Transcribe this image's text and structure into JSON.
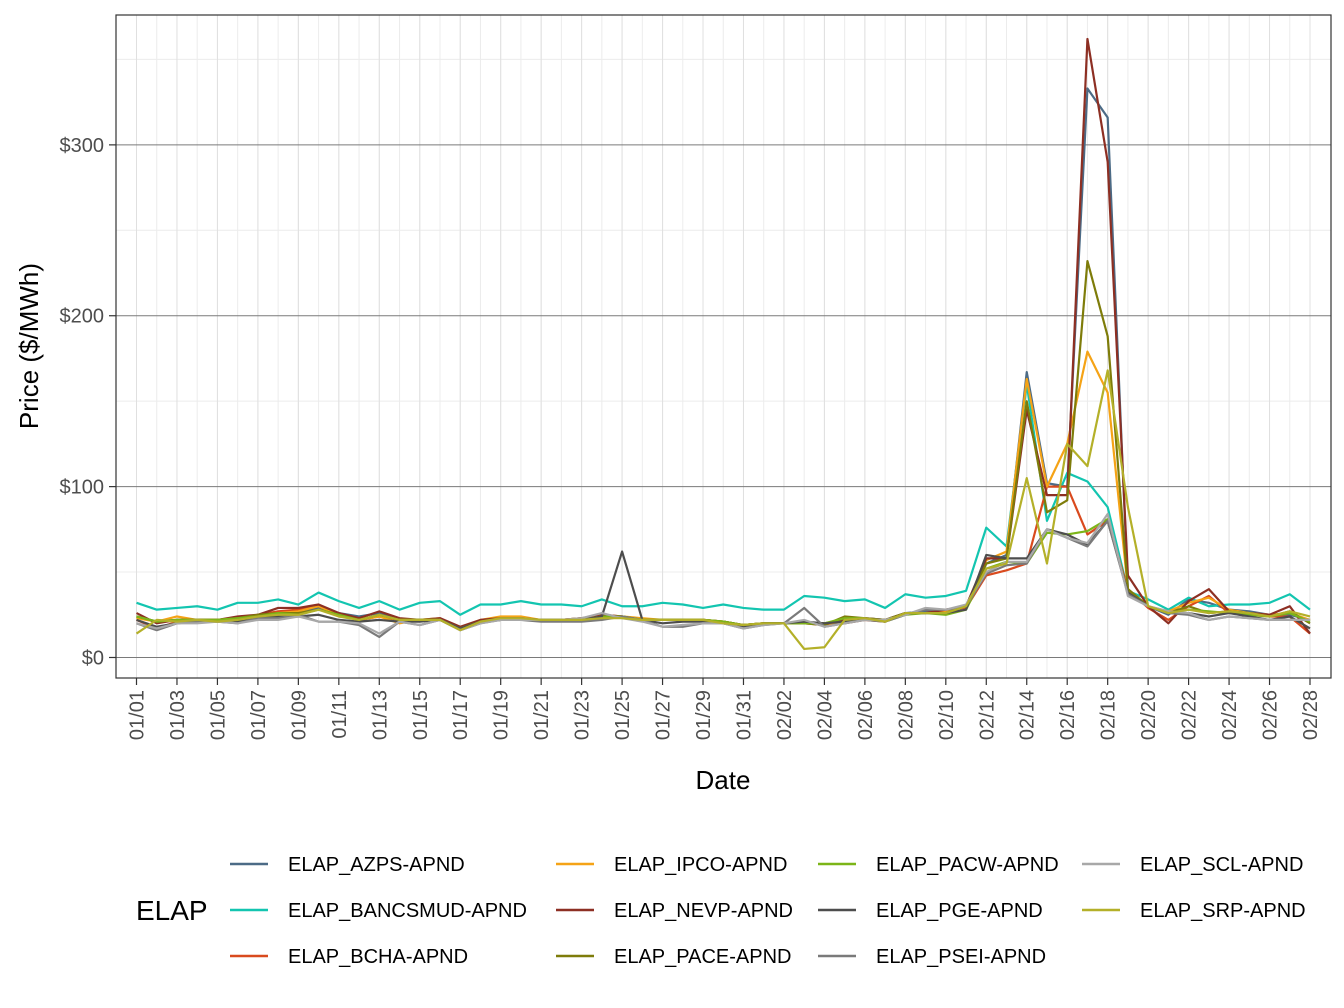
{
  "chart_data": {
    "type": "line",
    "xlabel": "Date",
    "ylabel": "Price ($/MWh)",
    "legend_title": "ELAP",
    "legend_position": "bottom",
    "grid": true,
    "ylim": [
      -12,
      376
    ],
    "y_ticks": [
      0,
      100,
      200,
      300
    ],
    "y_tick_labels": [
      "$0",
      "$100",
      "$200",
      "$300"
    ],
    "y_minor_ticks": [
      50,
      150,
      250,
      350
    ],
    "x": [
      "01/01",
      "01/02",
      "01/03",
      "01/04",
      "01/05",
      "01/06",
      "01/07",
      "01/08",
      "01/09",
      "01/10",
      "01/11",
      "01/12",
      "01/13",
      "01/14",
      "01/15",
      "01/16",
      "01/17",
      "01/18",
      "01/19",
      "01/20",
      "01/21",
      "01/22",
      "01/23",
      "01/24",
      "01/25",
      "01/26",
      "01/27",
      "01/28",
      "01/29",
      "01/30",
      "01/31",
      "02/01",
      "02/02",
      "02/03",
      "02/04",
      "02/05",
      "02/06",
      "02/07",
      "02/08",
      "02/09",
      "02/10",
      "02/11",
      "02/12",
      "02/13",
      "02/14",
      "02/15",
      "02/16",
      "02/17",
      "02/18",
      "02/19",
      "02/20",
      "02/21",
      "02/22",
      "02/23",
      "02/24",
      "02/25",
      "02/26",
      "02/27",
      "02/28"
    ],
    "x_tick_labels": [
      "01/01",
      "01/03",
      "01/05",
      "01/07",
      "01/09",
      "01/11",
      "01/13",
      "01/15",
      "01/17",
      "01/19",
      "01/21",
      "01/23",
      "01/25",
      "01/27",
      "01/29",
      "01/31",
      "02/02",
      "02/04",
      "02/06",
      "02/08",
      "02/10",
      "02/12",
      "02/14",
      "02/16",
      "02/18",
      "02/20",
      "02/22",
      "02/24",
      "02/26",
      "02/28"
    ],
    "series": [
      {
        "name": "ELAP_AZPS-APND",
        "color": "#4c6b86",
        "values": [
          24,
          21,
          22,
          22,
          22,
          23,
          24,
          26,
          27,
          29,
          26,
          24,
          26,
          22,
          22,
          22,
          17,
          21,
          23,
          23,
          22,
          22,
          23,
          24,
          24,
          22,
          22,
          22,
          22,
          21,
          19,
          20,
          20,
          20,
          20,
          21,
          23,
          22,
          26,
          27,
          28,
          30,
          55,
          60,
          167,
          102,
          100,
          333,
          316,
          40,
          30,
          25,
          34,
          32,
          28,
          27,
          25,
          25,
          22
        ]
      },
      {
        "name": "ELAP_BANCSMUD-APND",
        "color": "#13c5b0",
        "values": [
          32,
          28,
          29,
          30,
          28,
          32,
          32,
          34,
          31,
          38,
          33,
          29,
          33,
          28,
          32,
          33,
          25,
          31,
          31,
          33,
          31,
          31,
          30,
          34,
          30,
          30,
          32,
          31,
          29,
          31,
          29,
          28,
          28,
          36,
          35,
          33,
          34,
          29,
          37,
          35,
          36,
          39,
          76,
          65,
          160,
          80,
          108,
          103,
          88,
          39,
          34,
          28,
          35,
          30,
          31,
          31,
          32,
          37,
          28
        ]
      },
      {
        "name": "ELAP_BCHA-APND",
        "color": "#d94a1e",
        "values": [
          22,
          17,
          21,
          22,
          22,
          23,
          25,
          27,
          28,
          30,
          25,
          22,
          24,
          22,
          22,
          22,
          17,
          21,
          22,
          22,
          22,
          22,
          22,
          24,
          24,
          22,
          22,
          22,
          22,
          21,
          19,
          20,
          20,
          20,
          19,
          20,
          22,
          21,
          26,
          26,
          28,
          29,
          48,
          51,
          55,
          100,
          100,
          72,
          80,
          40,
          29,
          22,
          30,
          36,
          26,
          25,
          24,
          24,
          14
        ]
      },
      {
        "name": "ELAP_IPCO-APND",
        "color": "#f5a316",
        "values": [
          23,
          21,
          24,
          22,
          22,
          23,
          24,
          26,
          27,
          30,
          25,
          22,
          24,
          20,
          22,
          23,
          17,
          22,
          24,
          24,
          22,
          22,
          23,
          25,
          24,
          23,
          22,
          22,
          22,
          21,
          19,
          20,
          20,
          20,
          20,
          20,
          23,
          21,
          26,
          26,
          27,
          30,
          57,
          62,
          163,
          100,
          125,
          179,
          155,
          40,
          30,
          27,
          32,
          35,
          28,
          26,
          25,
          26,
          22
        ]
      },
      {
        "name": "ELAP_NEVP-APND",
        "color": "#8d2f23",
        "values": [
          26,
          20,
          22,
          22,
          22,
          24,
          25,
          29,
          29,
          31,
          26,
          23,
          27,
          23,
          22,
          23,
          18,
          22,
          23,
          23,
          22,
          22,
          23,
          25,
          24,
          22,
          22,
          22,
          21,
          21,
          19,
          20,
          20,
          20,
          20,
          22,
          23,
          22,
          26,
          26,
          28,
          30,
          58,
          58,
          145,
          95,
          95,
          362,
          290,
          48,
          30,
          20,
          33,
          40,
          27,
          26,
          25,
          30,
          14
        ]
      },
      {
        "name": "ELAP_PACE-APND",
        "color": "#7e7c0a",
        "values": [
          24,
          21,
          22,
          22,
          22,
          23,
          25,
          26,
          26,
          28,
          25,
          22,
          25,
          22,
          22,
          22,
          17,
          21,
          22,
          22,
          22,
          22,
          22,
          24,
          24,
          22,
          22,
          22,
          22,
          21,
          19,
          20,
          20,
          20,
          19,
          24,
          23,
          22,
          26,
          26,
          26,
          30,
          55,
          58,
          150,
          85,
          92,
          232,
          188,
          40,
          30,
          26,
          30,
          26,
          27,
          26,
          24,
          27,
          20
        ]
      },
      {
        "name": "ELAP_PACW-APND",
        "color": "#7cb518",
        "values": [
          24,
          21,
          22,
          22,
          22,
          23,
          24,
          26,
          25,
          28,
          25,
          22,
          25,
          22,
          22,
          22,
          17,
          21,
          22,
          22,
          22,
          22,
          22,
          24,
          24,
          22,
          22,
          22,
          22,
          21,
          19,
          20,
          20,
          20,
          20,
          23,
          23,
          21,
          25,
          26,
          25,
          28,
          52,
          56,
          55,
          73,
          72,
          74,
          81,
          38,
          30,
          26,
          28,
          27,
          26,
          25,
          24,
          26,
          21
        ]
      },
      {
        "name": "ELAP_PGE-APND",
        "color": "#4d4d4d",
        "values": [
          22,
          18,
          20,
          21,
          21,
          21,
          23,
          24,
          24,
          25,
          22,
          21,
          22,
          21,
          21,
          22,
          17,
          21,
          22,
          22,
          22,
          22,
          22,
          24,
          62,
          22,
          20,
          21,
          21,
          20,
          18,
          20,
          20,
          21,
          20,
          21,
          23,
          21,
          26,
          26,
          26,
          28,
          60,
          58,
          58,
          75,
          72,
          66,
          80,
          38,
          30,
          26,
          26,
          24,
          26,
          24,
          22,
          24,
          17
        ]
      },
      {
        "name": "ELAP_PSEI-APND",
        "color": "#7a7a7a",
        "values": [
          20,
          16,
          20,
          21,
          21,
          20,
          23,
          23,
          25,
          21,
          21,
          19,
          12,
          21,
          19,
          22,
          16,
          20,
          22,
          22,
          21,
          21,
          21,
          22,
          24,
          22,
          18,
          18,
          20,
          20,
          17,
          19,
          20,
          29,
          18,
          20,
          22,
          21,
          25,
          28,
          28,
          30,
          49,
          54,
          55,
          75,
          70,
          65,
          80,
          37,
          30,
          26,
          25,
          22,
          24,
          23,
          22,
          22,
          22
        ]
      },
      {
        "name": "ELAP_SCL-APND",
        "color": "#a8a8a8",
        "values": [
          20,
          17,
          20,
          20,
          21,
          20,
          22,
          22,
          24,
          21,
          21,
          20,
          14,
          21,
          19,
          22,
          16,
          20,
          22,
          22,
          22,
          22,
          23,
          26,
          23,
          21,
          18,
          19,
          20,
          20,
          17,
          19,
          20,
          22,
          18,
          20,
          22,
          22,
          25,
          29,
          28,
          31,
          50,
          56,
          56,
          75,
          70,
          67,
          84,
          36,
          30,
          27,
          26,
          22,
          24,
          23,
          22,
          22,
          22
        ]
      },
      {
        "name": "ELAP_SRP-APND",
        "color": "#b4b029",
        "values": [
          14,
          22,
          21,
          22,
          21,
          22,
          24,
          25,
          25,
          28,
          24,
          22,
          25,
          22,
          22,
          22,
          16,
          21,
          23,
          23,
          22,
          22,
          22,
          23,
          23,
          22,
          22,
          22,
          22,
          20,
          19,
          20,
          20,
          5,
          6,
          22,
          23,
          21,
          26,
          26,
          26,
          30,
          52,
          55,
          105,
          55,
          125,
          112,
          168,
          88,
          30,
          26,
          28,
          26,
          27,
          26,
          24,
          27,
          24
        ]
      }
    ]
  }
}
